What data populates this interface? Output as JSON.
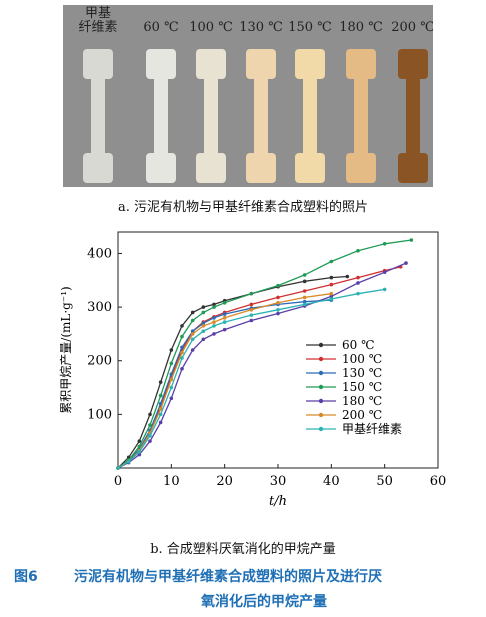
{
  "photo": {
    "labels": [
      "甲基\n纤维素",
      "60 ℃",
      "100 ℃",
      "130 ℃",
      "150 ℃",
      "180 ℃",
      "200 ℃"
    ],
    "specimen_colors": [
      "#d8d9d2",
      "#e6e6e0",
      "#e8e2d2",
      "#eed5ad",
      "#f2d9a8",
      "#e4bb85",
      "#8a5424"
    ]
  },
  "caption_a": "a. 污泥有机物与甲基纤维素合成塑料的照片",
  "caption_b": "b. 合成塑料厌氧消化的甲烷产量",
  "figure_caption": {
    "number": "图6",
    "line1": "污泥有机物与甲基纤维素合成塑料的照片及进行厌",
    "line2": "氧消化后的甲烷产量"
  },
  "chart_data": {
    "type": "line",
    "xlabel": "t/h",
    "ylabel": "累积甲烷产量/(mL·g⁻¹)",
    "xlim": [
      0,
      60
    ],
    "ylim": [
      0,
      440
    ],
    "xticks": [
      0,
      10,
      20,
      30,
      40,
      50,
      60
    ],
    "yticks": [
      100,
      200,
      300,
      400
    ],
    "x_tick_labels": [
      "0",
      "10",
      "20",
      "30",
      "40",
      "50",
      "60"
    ],
    "y_tick_labels": [
      "100",
      "200",
      "300",
      "400"
    ],
    "legend_position": "center-right",
    "series": [
      {
        "name": "60 ℃",
        "color": "#333333",
        "x": [
          0,
          2,
          4,
          6,
          8,
          10,
          12,
          14,
          16,
          18,
          20,
          25,
          30,
          35,
          40,
          43
        ],
        "y": [
          0,
          20,
          50,
          100,
          160,
          220,
          265,
          290,
          300,
          305,
          312,
          325,
          338,
          348,
          355,
          357
        ]
      },
      {
        "name": "100 ℃",
        "color": "#d03030",
        "x": [
          0,
          2,
          4,
          6,
          8,
          10,
          12,
          14,
          16,
          18,
          20,
          25,
          30,
          35,
          40,
          45,
          50,
          53
        ],
        "y": [
          0,
          15,
          35,
          70,
          115,
          170,
          220,
          255,
          272,
          282,
          290,
          305,
          318,
          330,
          342,
          355,
          368,
          375
        ]
      },
      {
        "name": "130 ℃",
        "color": "#2e6bb5",
        "x": [
          0,
          2,
          4,
          6,
          8,
          10,
          12,
          14,
          16,
          18,
          20,
          25,
          30,
          35,
          40
        ],
        "y": [
          0,
          12,
          35,
          70,
          120,
          175,
          225,
          255,
          270,
          280,
          287,
          298,
          305,
          310,
          313
        ]
      },
      {
        "name": "150 ℃",
        "color": "#1f9b55",
        "x": [
          0,
          2,
          4,
          6,
          8,
          10,
          12,
          14,
          16,
          18,
          20,
          25,
          30,
          35,
          40,
          45,
          50,
          55
        ],
        "y": [
          0,
          15,
          40,
          80,
          135,
          195,
          245,
          275,
          290,
          300,
          308,
          325,
          340,
          360,
          385,
          405,
          418,
          425
        ]
      },
      {
        "name": "180 ℃",
        "color": "#5b3fa8",
        "x": [
          0,
          2,
          4,
          6,
          8,
          10,
          12,
          14,
          16,
          18,
          20,
          25,
          30,
          35,
          40,
          45,
          50,
          54
        ],
        "y": [
          0,
          10,
          25,
          50,
          85,
          130,
          185,
          220,
          240,
          250,
          258,
          275,
          288,
          302,
          320,
          345,
          365,
          382
        ]
      },
      {
        "name": "200 ℃",
        "color": "#d68a2a",
        "x": [
          0,
          2,
          4,
          6,
          8,
          10,
          12,
          14,
          16,
          18,
          20,
          25,
          30,
          35,
          40
        ],
        "y": [
          0,
          12,
          32,
          65,
          110,
          165,
          215,
          250,
          265,
          272,
          280,
          295,
          308,
          318,
          325
        ]
      },
      {
        "name": "甲基纤维素",
        "color": "#2ab3b3",
        "x": [
          0,
          2,
          4,
          6,
          8,
          10,
          12,
          14,
          16,
          18,
          20,
          25,
          30,
          35,
          40,
          45,
          50
        ],
        "y": [
          0,
          12,
          30,
          60,
          100,
          150,
          205,
          240,
          255,
          265,
          272,
          285,
          295,
          305,
          315,
          325,
          333
        ]
      }
    ]
  }
}
